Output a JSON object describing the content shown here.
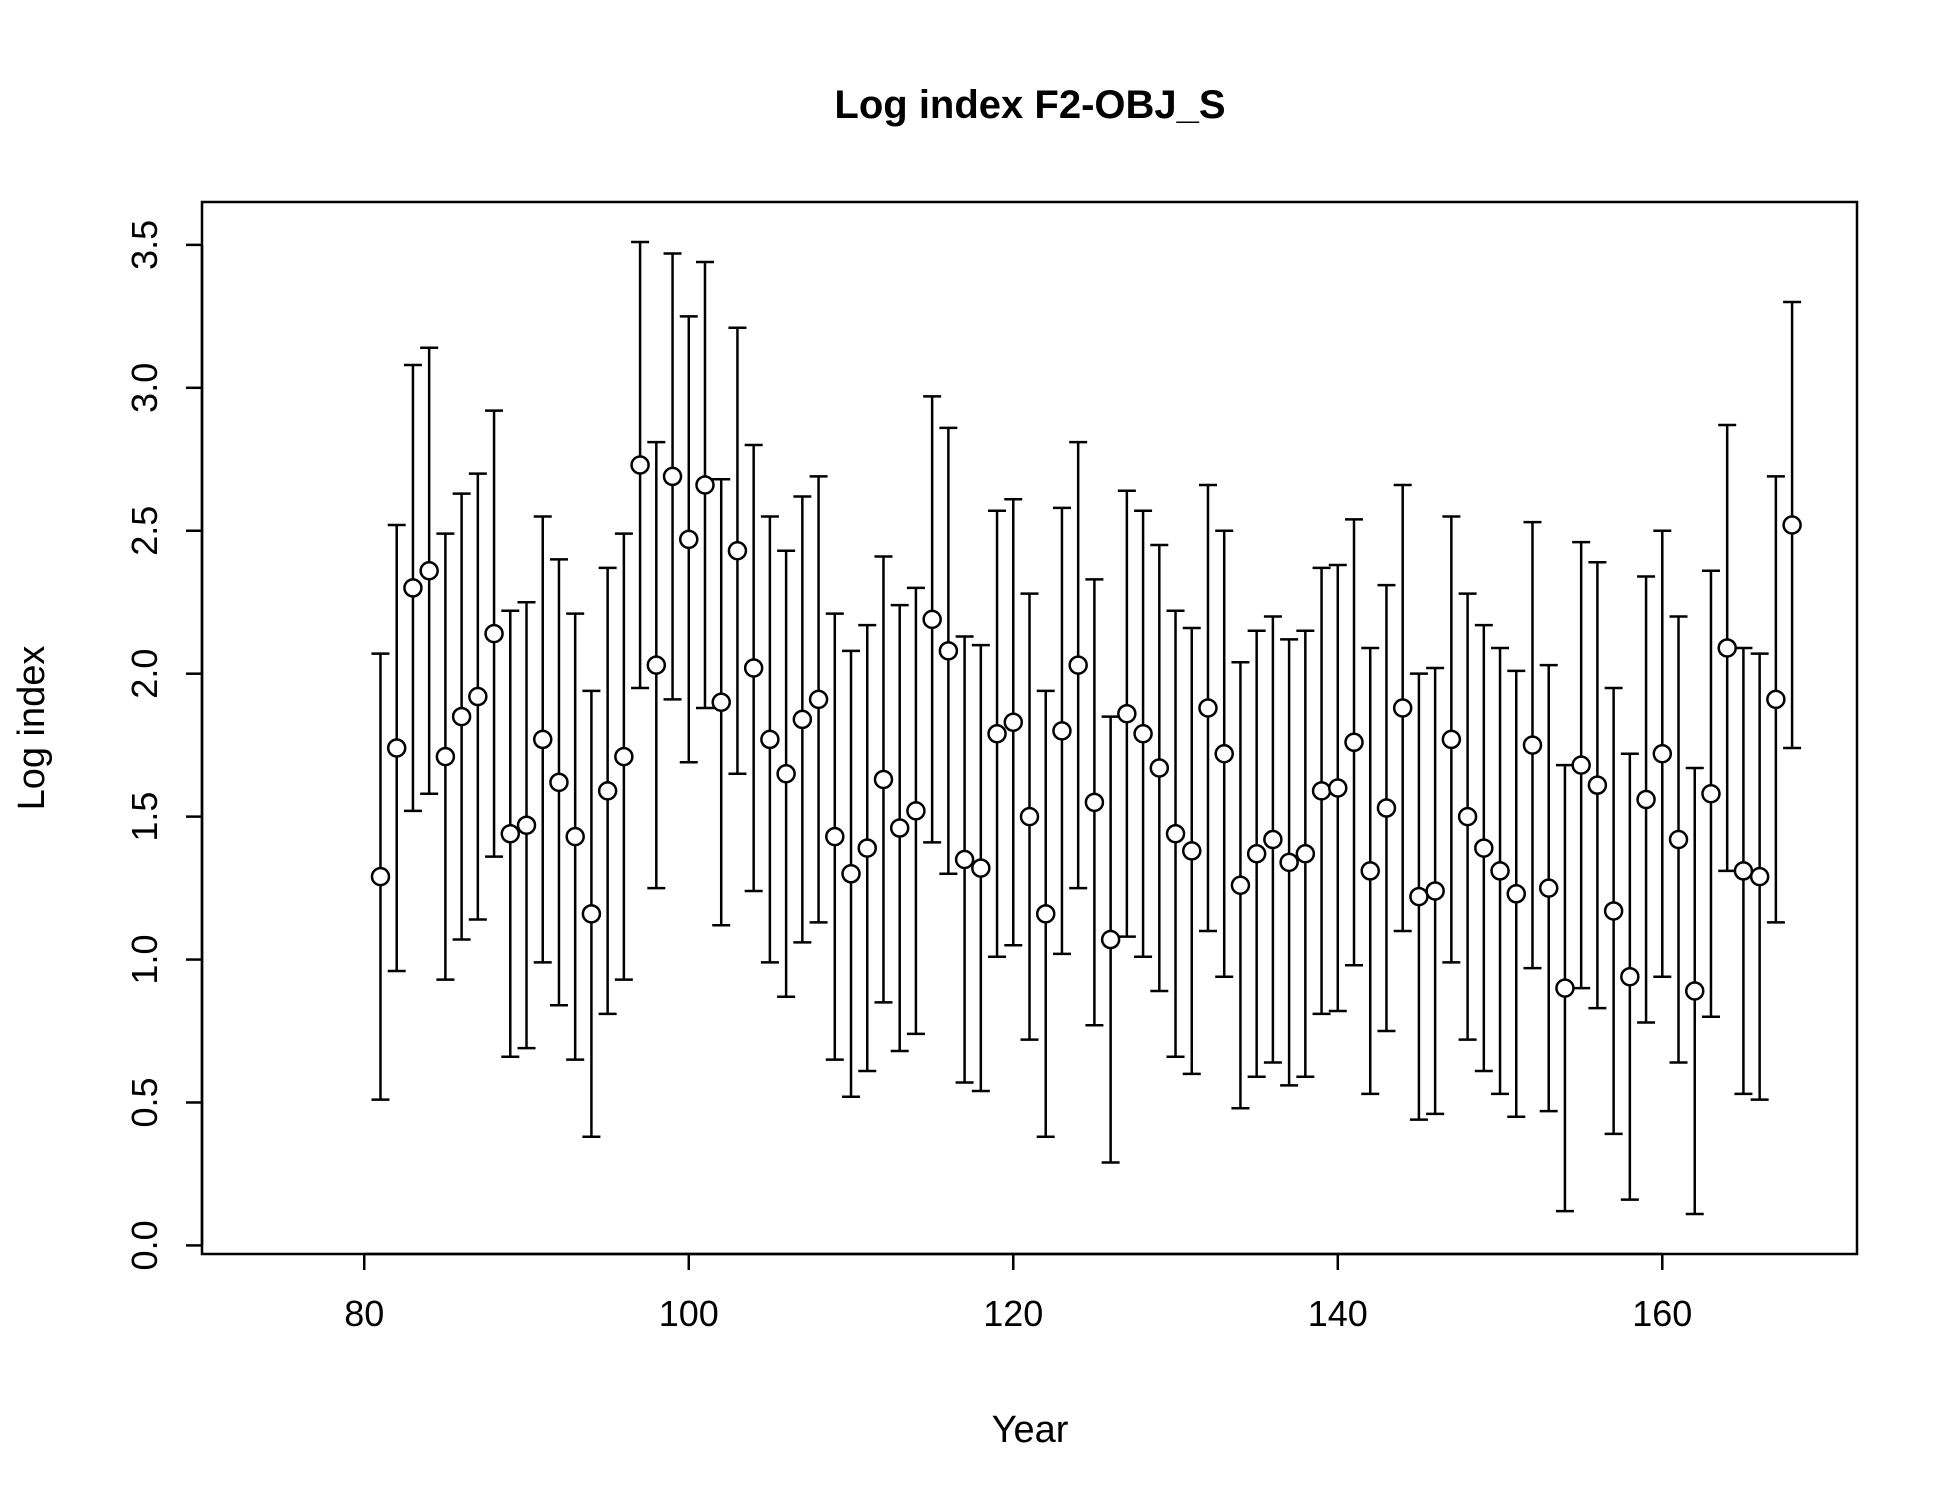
{
  "chart_data": {
    "type": "scatter",
    "title": "Log index F2-OBJ_S",
    "xlabel": "Year",
    "ylabel": "Log index",
    "xlim": [
      70,
      172
    ],
    "ylim": [
      -0.03,
      3.65
    ],
    "x_ticks": [
      80,
      100,
      120,
      140,
      160
    ],
    "x_tick_labels": [
      "80",
      "100",
      "120",
      "140",
      "160"
    ],
    "y_ticks": [
      0.0,
      0.5,
      1.0,
      1.5,
      2.0,
      2.5,
      3.0,
      3.5
    ],
    "y_tick_labels": [
      "0.0",
      "0.5",
      "1.0",
      "1.5",
      "2.0",
      "2.5",
      "3.0",
      "3.5"
    ],
    "grid": false,
    "error_half_width": 0.78,
    "series": [
      {
        "marker": "open-circle",
        "error_bars": true,
        "x": [
          81,
          82,
          83,
          84,
          85,
          86,
          87,
          88,
          89,
          90,
          91,
          92,
          93,
          94,
          95,
          96,
          97,
          98,
          99,
          100,
          101,
          102,
          103,
          104,
          105,
          106,
          107,
          108,
          109,
          110,
          111,
          112,
          113,
          114,
          115,
          116,
          117,
          118,
          119,
          120,
          121,
          122,
          123,
          124,
          125,
          126,
          127,
          128,
          129,
          130,
          131,
          132,
          133,
          134,
          135,
          136,
          137,
          138,
          139,
          140,
          141,
          142,
          143,
          144,
          145,
          146,
          147,
          148,
          149,
          150,
          151,
          152,
          153,
          154,
          155,
          156,
          157,
          158,
          159,
          160,
          161,
          162,
          163,
          164,
          165,
          166,
          167,
          168
        ],
        "y": [
          1.29,
          1.74,
          2.3,
          2.36,
          1.71,
          1.85,
          1.92,
          2.14,
          1.44,
          1.47,
          1.77,
          1.62,
          1.43,
          1.16,
          1.59,
          1.71,
          2.73,
          2.03,
          2.69,
          2.47,
          2.66,
          1.9,
          2.43,
          2.02,
          1.77,
          1.65,
          1.84,
          1.91,
          1.43,
          1.3,
          1.39,
          1.63,
          1.46,
          1.52,
          2.19,
          2.08,
          1.35,
          1.32,
          1.79,
          1.83,
          1.5,
          1.16,
          1.8,
          2.03,
          1.55,
          1.07,
          1.86,
          1.79,
          1.67,
          1.44,
          1.38,
          1.88,
          1.72,
          1.26,
          1.37,
          1.42,
          1.34,
          1.37,
          1.59,
          1.6,
          1.76,
          1.31,
          1.53,
          1.88,
          1.22,
          1.24,
          1.77,
          1.5,
          1.39,
          1.31,
          1.23,
          1.75,
          1.25,
          0.9,
          1.68,
          1.61,
          1.17,
          0.94,
          1.56,
          1.72,
          1.42,
          0.89,
          1.58,
          2.09,
          1.31,
          1.29,
          1.91,
          2.52
        ]
      }
    ]
  }
}
